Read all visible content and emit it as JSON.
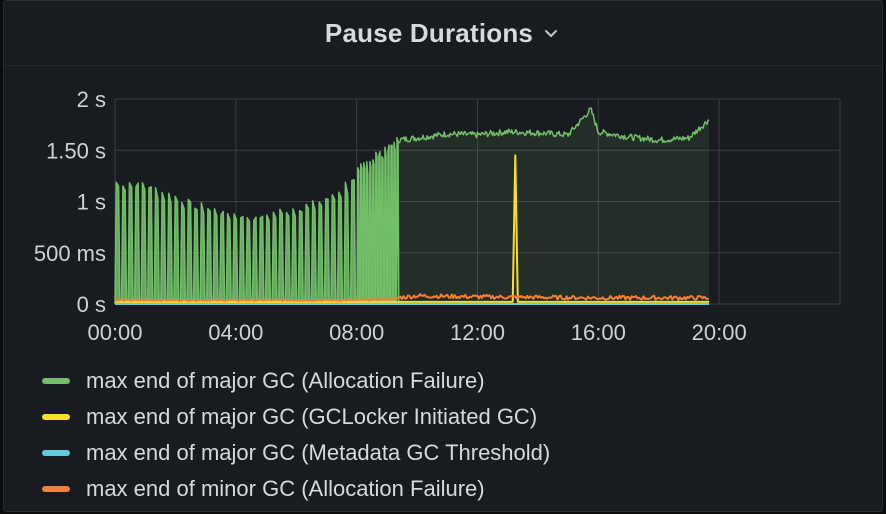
{
  "panel": {
    "title": "Pause Durations",
    "menu_icon": "chevron-down-icon"
  },
  "colors": {
    "background": "#181b1f",
    "grid": "#3a3d43",
    "text": "#d8d9da"
  },
  "chart_data": {
    "type": "line",
    "title": "Pause Durations",
    "xlabel": "",
    "ylabel": "",
    "x_range": [
      "00:00",
      "24:00"
    ],
    "ylim_seconds": [
      0,
      2
    ],
    "x_ticks": [
      "00:00",
      "04:00",
      "08:00",
      "12:00",
      "16:00",
      "20:00"
    ],
    "y_ticks": [
      {
        "value": 0,
        "label": "0 s"
      },
      {
        "value": 0.5,
        "label": "500 ms"
      },
      {
        "value": 1,
        "label": "1 s"
      },
      {
        "value": 1.5,
        "label": "1.50 s"
      },
      {
        "value": 2,
        "label": "2 s"
      }
    ],
    "grid": true,
    "legend_position": "bottom",
    "series": [
      {
        "name": "max end of major GC (Allocation Failure)",
        "color": "#73bf69",
        "style": "oscillating until ~09:20 then sustained",
        "points": [
          [
            "00:00",
            1.2
          ],
          [
            "00:30",
            1.2
          ],
          [
            "01:00",
            1.18
          ],
          [
            "01:30",
            1.1
          ],
          [
            "02:00",
            1.05
          ],
          [
            "02:30",
            0.98
          ],
          [
            "03:00",
            0.95
          ],
          [
            "03:30",
            0.9
          ],
          [
            "04:00",
            0.88
          ],
          [
            "04:30",
            0.85
          ],
          [
            "05:00",
            0.88
          ],
          [
            "05:30",
            0.92
          ],
          [
            "06:00",
            0.95
          ],
          [
            "06:30",
            0.98
          ],
          [
            "07:00",
            1.05
          ],
          [
            "07:30",
            1.15
          ],
          [
            "08:00",
            1.3
          ],
          [
            "08:30",
            1.45
          ],
          [
            "09:00",
            1.55
          ],
          [
            "09:20",
            1.6
          ],
          [
            "10:00",
            1.62
          ],
          [
            "11:00",
            1.66
          ],
          [
            "12:00",
            1.65
          ],
          [
            "13:00",
            1.68
          ],
          [
            "14:00",
            1.67
          ],
          [
            "15:00",
            1.65
          ],
          [
            "15:45",
            1.9
          ],
          [
            "16:00",
            1.68
          ],
          [
            "17:00",
            1.63
          ],
          [
            "18:00",
            1.6
          ],
          [
            "19:00",
            1.62
          ],
          [
            "19:40",
            1.8
          ]
        ]
      },
      {
        "name": "max end of major GC (GCLocker Initiated GC)",
        "color": "#fade2a",
        "points": [
          [
            "00:00",
            0.02
          ],
          [
            "13:10",
            0.02
          ],
          [
            "13:15",
            1.45
          ],
          [
            "13:20",
            0.02
          ],
          [
            "19:40",
            0.02
          ]
        ]
      },
      {
        "name": "max end of major GC (Metadata GC Threshold)",
        "color": "#5ecde0",
        "points": [
          [
            "00:00",
            0.0
          ],
          [
            "19:40",
            0.0
          ]
        ]
      },
      {
        "name": "max end of minor GC (Allocation Failure)",
        "color": "#f2823a",
        "points": [
          [
            "00:00",
            0.03
          ],
          [
            "04:00",
            0.03
          ],
          [
            "08:00",
            0.03
          ],
          [
            "09:20",
            0.04
          ],
          [
            "10:00",
            0.06
          ],
          [
            "12:00",
            0.05
          ],
          [
            "16:00",
            0.04
          ],
          [
            "19:40",
            0.04
          ]
        ]
      }
    ]
  }
}
